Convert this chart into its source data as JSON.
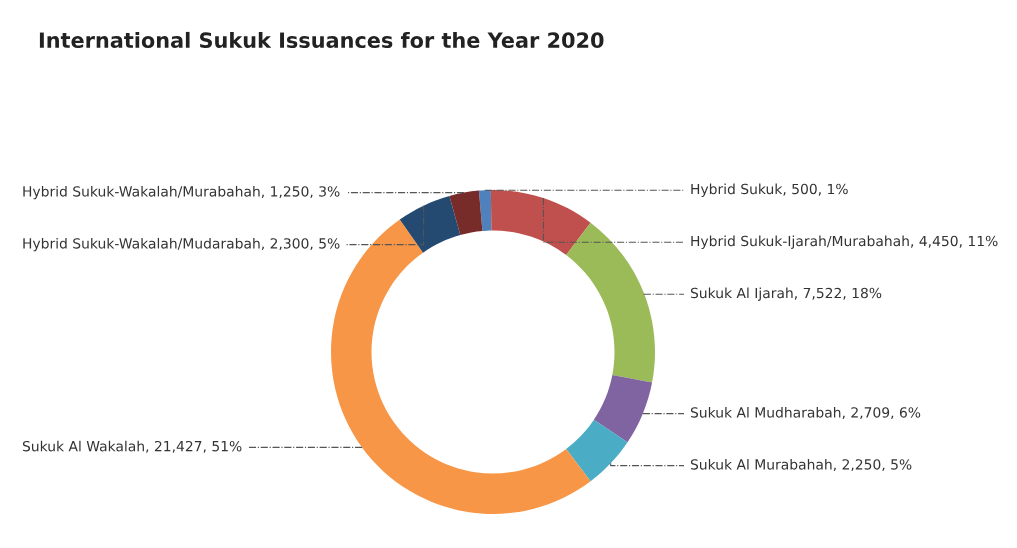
{
  "chart_data": {
    "type": "donut",
    "title": "International Sukuk Issuances for the Year 2020",
    "categories": [
      "Hybrid Sukuk",
      "Hybrid Sukuk-Ijarah/Murabahah",
      "Sukuk Al Ijarah",
      "Sukuk Al Mudharabah",
      "Sukuk Al Murabahah",
      "Sukuk Al Wakalah",
      "Hybrid Sukuk-Wakalah/Mudarabah",
      "Hybrid Sukuk-Wakalah/Murabahah"
    ],
    "values": [
      500,
      4450,
      7522,
      2709,
      2250,
      21427,
      2300,
      1250
    ],
    "colors": [
      "#4f81bd",
      "#c0504d",
      "#9bbb59",
      "#8064a2",
      "#4bacc6",
      "#f79646",
      "#254a72",
      "#772c2a"
    ],
    "value_labels": [
      "500, 1%",
      "4,450, 11%",
      "7,522, 18%",
      "2,709, 6%",
      "2,250, 5%",
      "21,427, 51%",
      "2,300, 5%",
      "1,250, 3%"
    ]
  }
}
